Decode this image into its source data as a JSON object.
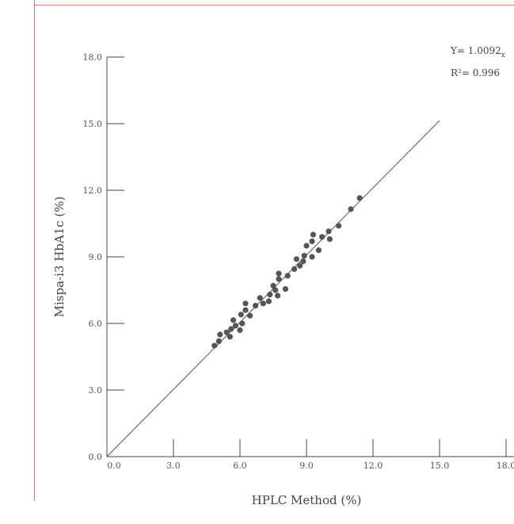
{
  "chart_data": {
    "type": "scatter",
    "xlabel": "HPLC Method (%)",
    "ylabel": "Mispa-i3 HbA1c (%)",
    "xlim": [
      0,
      18
    ],
    "ylim": [
      0,
      18
    ],
    "x_ticks": [
      "0.0",
      "3.0",
      "6.0",
      "9.0",
      "12.0",
      "15.0",
      "18.0"
    ],
    "y_ticks": [
      "0.0",
      "3.0",
      "6.0",
      "9.0",
      "12.0",
      "15.0",
      "18.0"
    ],
    "equation_text": "Y= 1.0092",
    "equation_suffix": "x",
    "r2_text": "R²= 0.996",
    "regression": {
      "slope": 1.0092,
      "intercept": 0,
      "x_end": 15.0
    },
    "grid": false,
    "points": [
      {
        "x": 4.85,
        "y": 5.0
      },
      {
        "x": 5.05,
        "y": 5.2
      },
      {
        "x": 5.1,
        "y": 5.5
      },
      {
        "x": 5.4,
        "y": 5.6
      },
      {
        "x": 5.55,
        "y": 5.4
      },
      {
        "x": 5.6,
        "y": 5.75
      },
      {
        "x": 5.7,
        "y": 6.15
      },
      {
        "x": 5.8,
        "y": 5.9
      },
      {
        "x": 6.0,
        "y": 5.7
      },
      {
        "x": 6.05,
        "y": 6.4
      },
      {
        "x": 6.1,
        "y": 6.0
      },
      {
        "x": 6.25,
        "y": 6.6
      },
      {
        "x": 6.25,
        "y": 6.9
      },
      {
        "x": 6.45,
        "y": 6.35
      },
      {
        "x": 6.7,
        "y": 6.8
      },
      {
        "x": 6.9,
        "y": 7.15
      },
      {
        "x": 7.05,
        "y": 6.9
      },
      {
        "x": 7.3,
        "y": 7.0
      },
      {
        "x": 7.35,
        "y": 7.3
      },
      {
        "x": 7.5,
        "y": 7.7
      },
      {
        "x": 7.6,
        "y": 7.5
      },
      {
        "x": 7.7,
        "y": 7.25
      },
      {
        "x": 7.75,
        "y": 8.0
      },
      {
        "x": 7.75,
        "y": 8.25
      },
      {
        "x": 8.05,
        "y": 7.55
      },
      {
        "x": 8.15,
        "y": 8.15
      },
      {
        "x": 8.45,
        "y": 8.45
      },
      {
        "x": 8.55,
        "y": 8.9
      },
      {
        "x": 8.7,
        "y": 8.6
      },
      {
        "x": 8.85,
        "y": 8.8
      },
      {
        "x": 8.9,
        "y": 9.05
      },
      {
        "x": 9.0,
        "y": 9.5
      },
      {
        "x": 9.25,
        "y": 9.0
      },
      {
        "x": 9.25,
        "y": 9.7
      },
      {
        "x": 9.3,
        "y": 10.0
      },
      {
        "x": 9.55,
        "y": 9.3
      },
      {
        "x": 9.7,
        "y": 9.9
      },
      {
        "x": 10.0,
        "y": 10.15
      },
      {
        "x": 10.05,
        "y": 9.8
      },
      {
        "x": 10.45,
        "y": 10.4
      },
      {
        "x": 11.0,
        "y": 11.15
      },
      {
        "x": 11.4,
        "y": 11.65
      }
    ],
    "colors": {
      "points": "#555555",
      "axes": "#444444",
      "frame_border": "#e53935",
      "line": "#555555"
    }
  }
}
